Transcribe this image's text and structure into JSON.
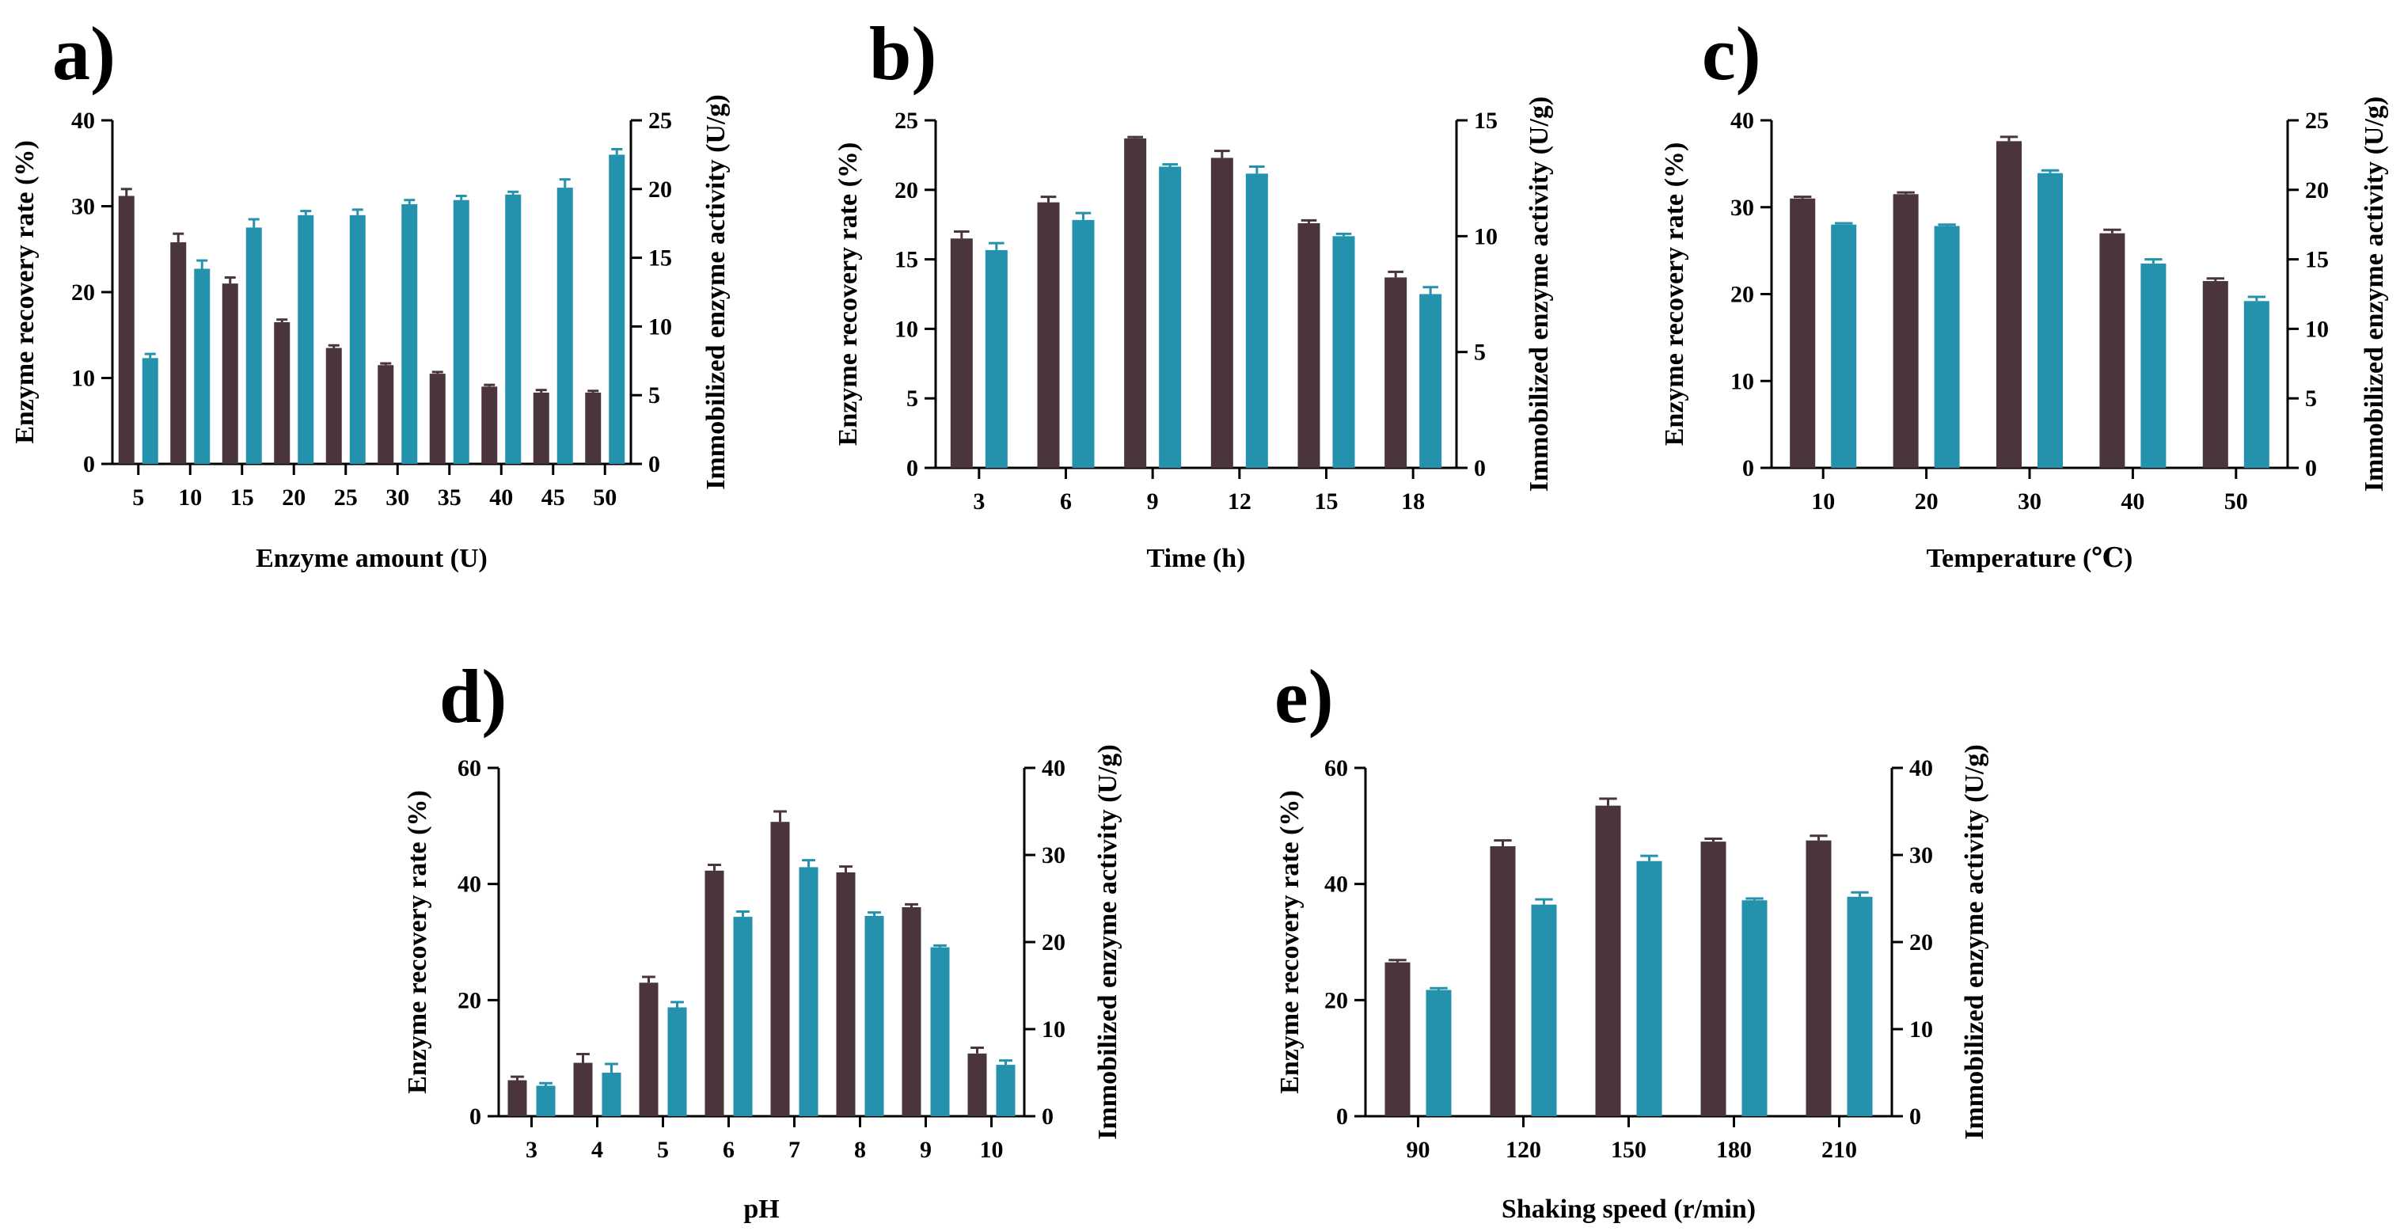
{
  "colors": {
    "recovery": "#4a353d",
    "activity": "#2592ad"
  },
  "chart_data": [
    {
      "type": "bar",
      "panel": "a)",
      "xlabel": "Enzyme amount (U)",
      "ylabel_left": "Enzyme recovery rate (%)",
      "ylabel_right": "Immobilized enzyme activity (U/g)",
      "categories": [
        "5",
        "10",
        "15",
        "20",
        "25",
        "30",
        "35",
        "40",
        "45",
        "50"
      ],
      "ylim_left": [
        0,
        40
      ],
      "yticks_left": [
        0,
        10,
        20,
        30,
        40
      ],
      "ylim_right": [
        0,
        25
      ],
      "yticks_right": [
        0,
        5,
        10,
        15,
        20,
        25
      ],
      "series": [
        {
          "name": "Enzyme recovery rate",
          "axis": "left",
          "values": [
            31.2,
            25.8,
            21.0,
            16.5,
            13.5,
            11.5,
            10.5,
            9.0,
            8.3,
            8.3
          ],
          "errors": [
            0.8,
            1.0,
            0.7,
            0.3,
            0.3,
            0.2,
            0.2,
            0.2,
            0.3,
            0.2
          ]
        },
        {
          "name": "Immobilized enzyme activity",
          "axis": "right",
          "values": [
            7.7,
            14.2,
            17.2,
            18.1,
            18.1,
            18.9,
            19.2,
            19.6,
            20.1,
            22.5
          ],
          "errors": [
            0.3,
            0.6,
            0.6,
            0.3,
            0.4,
            0.3,
            0.3,
            0.2,
            0.6,
            0.4
          ]
        }
      ]
    },
    {
      "type": "bar",
      "panel": "b)",
      "xlabel": "Time (h)",
      "ylabel_left": "Enzyme recovery rate (%)",
      "ylabel_right": "Immobilized enzyme activity (U/g)",
      "categories": [
        "3",
        "6",
        "9",
        "12",
        "15",
        "18"
      ],
      "ylim_left": [
        0,
        25
      ],
      "yticks_left": [
        0,
        5,
        10,
        15,
        20,
        25
      ],
      "ylim_right": [
        0,
        15
      ],
      "yticks_right": [
        0,
        5,
        10,
        15
      ],
      "series": [
        {
          "name": "Enzyme recovery rate",
          "axis": "left",
          "values": [
            16.5,
            19.1,
            23.7,
            22.3,
            17.6,
            13.7
          ],
          "errors": [
            0.5,
            0.4,
            0.1,
            0.5,
            0.2,
            0.4
          ]
        },
        {
          "name": "Immobilized enzyme activity",
          "axis": "right",
          "values": [
            9.4,
            10.7,
            13.0,
            12.7,
            10.0,
            7.5
          ],
          "errors": [
            0.3,
            0.3,
            0.1,
            0.3,
            0.1,
            0.3
          ]
        }
      ]
    },
    {
      "type": "bar",
      "panel": "c)",
      "xlabel": "Temperature (℃)",
      "ylabel_left": "Enzyme recovery rate (%)",
      "ylabel_right": "Immobilized enzyme activity (U/g)",
      "categories": [
        "10",
        "20",
        "30",
        "40",
        "50"
      ],
      "ylim_left": [
        0,
        40
      ],
      "yticks_left": [
        0,
        10,
        20,
        30,
        40
      ],
      "ylim_right": [
        0,
        25
      ],
      "yticks_right": [
        0,
        5,
        10,
        15,
        20,
        25
      ],
      "series": [
        {
          "name": "Enzyme recovery rate",
          "axis": "left",
          "values": [
            31.0,
            31.5,
            37.6,
            27.0,
            21.5
          ],
          "errors": [
            0.2,
            0.2,
            0.5,
            0.4,
            0.3
          ]
        },
        {
          "name": "Immobilized enzyme activity",
          "axis": "right",
          "values": [
            17.5,
            17.4,
            21.2,
            14.7,
            12.0
          ],
          "errors": [
            0.1,
            0.1,
            0.2,
            0.3,
            0.3
          ]
        }
      ]
    },
    {
      "type": "bar",
      "panel": "d)",
      "xlabel": "pH",
      "ylabel_left": "Enzyme recovery rate (%)",
      "ylabel_right": "Immobilized enzyme activity (U/g)",
      "categories": [
        "3",
        "4",
        "5",
        "6",
        "7",
        "8",
        "9",
        "10"
      ],
      "ylim_left": [
        0,
        60
      ],
      "yticks_left": [
        0,
        20,
        40,
        60
      ],
      "ylim_right": [
        0,
        40
      ],
      "yticks_right": [
        0,
        10,
        20,
        30,
        40
      ],
      "series": [
        {
          "name": "Enzyme recovery rate",
          "axis": "left",
          "values": [
            6.2,
            9.2,
            23.0,
            42.3,
            50.7,
            42.0,
            36.0,
            10.8
          ],
          "errors": [
            0.6,
            1.5,
            1.0,
            1.0,
            1.8,
            1.0,
            0.5,
            1.0
          ]
        },
        {
          "name": "Immobilized enzyme activity",
          "axis": "right",
          "values": [
            3.5,
            5.0,
            12.5,
            22.9,
            28.6,
            23.0,
            19.4,
            5.9
          ],
          "errors": [
            0.3,
            1.0,
            0.6,
            0.6,
            0.8,
            0.4,
            0.2,
            0.5
          ]
        }
      ]
    },
    {
      "type": "bar",
      "panel": "e)",
      "xlabel": "Shaking speed (r/min)",
      "ylabel_left": "Enzyme recovery rate (%)",
      "ylabel_right": "Immobilized enzyme activity (U/g)",
      "categories": [
        "90",
        "120",
        "150",
        "180",
        "210"
      ],
      "ylim_left": [
        0,
        60
      ],
      "yticks_left": [
        0,
        20,
        40,
        60
      ],
      "ylim_right": [
        0,
        40
      ],
      "yticks_right": [
        0,
        10,
        20,
        30,
        40
      ],
      "series": [
        {
          "name": "Enzyme recovery rate",
          "axis": "left",
          "values": [
            26.5,
            46.5,
            53.5,
            47.3,
            47.5
          ],
          "errors": [
            0.4,
            1.0,
            1.2,
            0.5,
            0.8
          ]
        },
        {
          "name": "Immobilized enzyme activity",
          "axis": "right",
          "values": [
            14.5,
            24.3,
            29.3,
            24.8,
            25.2
          ],
          "errors": [
            0.2,
            0.6,
            0.6,
            0.2,
            0.5
          ]
        }
      ]
    }
  ]
}
